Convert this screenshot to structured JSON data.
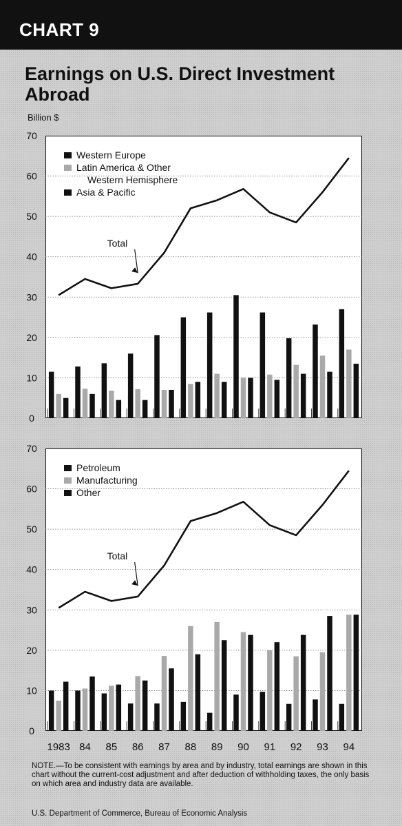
{
  "header": {
    "chart_label": "CHART 9"
  },
  "title": "Earnings on U.S. Direct Investment Abroad",
  "unit_label": "Billion $",
  "note": "NOTE.—To be consistent with earnings by area and by industry, total earnings are shown in this chart without the current-cost adjustment and after deduction of withholding taxes, the only basis on which area and industry data are available.",
  "source": "U.S. Department of Commerce, Bureau of Economic Analysis",
  "colors": {
    "dark": "#111111",
    "light": "#a9a9a9",
    "panel": "#ffffff"
  },
  "chart_data": [
    {
      "type": "bar",
      "categories": [
        "1983",
        "84",
        "85",
        "86",
        "87",
        "88",
        "89",
        "90",
        "91",
        "92",
        "93",
        "94"
      ],
      "series": [
        {
          "name": "Western Europe",
          "kind": "bar",
          "color": "#111111",
          "values": [
            11.5,
            12.8,
            13.6,
            16,
            20.6,
            25,
            26.2,
            30.5,
            26.2,
            19.8,
            23.2,
            27
          ]
        },
        {
          "name": "Latin America & Other Western Hemisphere",
          "kind": "bar",
          "color": "#a9a9a9",
          "values": [
            6,
            7.3,
            6.8,
            7.2,
            7,
            8.5,
            11,
            10,
            10.8,
            13.2,
            15.5,
            17
          ]
        },
        {
          "name": "Asia & Pacific",
          "kind": "bar",
          "color": "#111111",
          "values": [
            5,
            6,
            4.5,
            4.5,
            7,
            9,
            9,
            10,
            9.5,
            11,
            11.5,
            13.5
          ]
        },
        {
          "name": "Total",
          "kind": "line",
          "color": "#111111",
          "values": [
            30.5,
            34.5,
            32.2,
            33.3,
            41,
            52,
            54,
            56.8,
            51,
            48.5,
            56,
            64.5
          ]
        }
      ],
      "legend": [
        "Western Europe",
        "Latin America & Other",
        "Western Hemisphere",
        "Asia & Pacific"
      ],
      "annotation": "Total",
      "ylim": [
        0,
        70
      ],
      "yticks": [
        0,
        10,
        20,
        30,
        40,
        50,
        60,
        70
      ],
      "grid": true,
      "legend_position": "top-left"
    },
    {
      "type": "bar",
      "categories": [
        "1983",
        "84",
        "85",
        "86",
        "87",
        "88",
        "89",
        "90",
        "91",
        "92",
        "93",
        "94"
      ],
      "series": [
        {
          "name": "Petroleum",
          "kind": "bar",
          "color": "#111111",
          "values": [
            10,
            10,
            9.3,
            6.8,
            6.8,
            7.2,
            4.5,
            9,
            9.7,
            6.7,
            7.8,
            6.7
          ]
        },
        {
          "name": "Manufacturing",
          "kind": "bar",
          "color": "#a9a9a9",
          "values": [
            7.5,
            10.5,
            11.2,
            13.6,
            18.6,
            26,
            27,
            24.5,
            20,
            18.5,
            19.5,
            28.8
          ]
        },
        {
          "name": "Other",
          "kind": "bar",
          "color": "#111111",
          "values": [
            12.2,
            13.5,
            11.5,
            12.5,
            15.5,
            19,
            22.5,
            23.8,
            22,
            23.8,
            28.5,
            28.8
          ]
        },
        {
          "name": "Total",
          "kind": "line",
          "color": "#111111",
          "values": [
            30.5,
            34.5,
            32.2,
            33.3,
            41,
            52,
            54,
            56.8,
            51,
            48.5,
            56,
            64.5
          ]
        }
      ],
      "legend": [
        "Petroleum",
        "Manufacturing",
        "Other"
      ],
      "annotation": "Total",
      "ylim": [
        0,
        70
      ],
      "yticks": [
        0,
        10,
        20,
        30,
        40,
        50,
        60,
        70
      ],
      "grid": true,
      "legend_position": "top-left"
    }
  ]
}
